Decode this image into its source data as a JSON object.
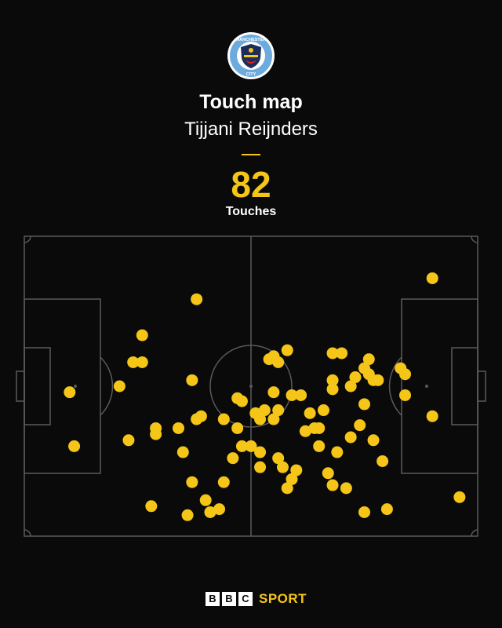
{
  "header": {
    "crest_text_top": "MANCHESTER",
    "crest_text_bottom": "CITY",
    "title": "Touch map",
    "player": "Tijjani Reijnders",
    "touch_count": "82",
    "touch_label": "Touches"
  },
  "footer": {
    "bbc_letters": [
      "B",
      "B",
      "C"
    ],
    "sport_label": "SPORT"
  },
  "colors": {
    "background": "#0a0a0a",
    "accent": "#f5c518",
    "pitch_lines": "#5a5a5a",
    "crest_blue": "#6cabdd"
  },
  "chart_data": {
    "type": "scatter",
    "x_range": [
      0,
      100
    ],
    "y_range": [
      0,
      100
    ],
    "touches": [
      [
        38,
        21
      ],
      [
        90,
        14
      ],
      [
        26,
        33
      ],
      [
        26,
        42
      ],
      [
        24,
        42
      ],
      [
        21,
        50
      ],
      [
        10,
        52
      ],
      [
        37,
        48
      ],
      [
        39,
        60
      ],
      [
        38,
        61
      ],
      [
        35,
        72
      ],
      [
        37,
        82
      ],
      [
        40,
        88
      ],
      [
        29,
        64
      ],
      [
        29,
        66
      ],
      [
        23,
        68
      ],
      [
        28,
        90
      ],
      [
        11,
        70
      ],
      [
        47,
        54
      ],
      [
        48,
        55
      ],
      [
        44,
        61
      ],
      [
        47,
        64
      ],
      [
        54,
        41
      ],
      [
        55,
        40
      ],
      [
        56,
        42
      ],
      [
        58,
        38
      ],
      [
        55,
        52
      ],
      [
        51,
        59
      ],
      [
        53,
        58
      ],
      [
        52,
        61
      ],
      [
        55,
        61
      ],
      [
        56,
        58
      ],
      [
        59,
        53
      ],
      [
        48,
        70
      ],
      [
        46,
        74
      ],
      [
        52,
        72
      ],
      [
        56,
        74
      ],
      [
        52,
        77
      ],
      [
        57,
        77
      ],
      [
        59,
        81
      ],
      [
        58,
        84
      ],
      [
        60,
        78
      ],
      [
        44,
        82
      ],
      [
        43,
        91
      ],
      [
        41,
        92
      ],
      [
        36,
        93
      ],
      [
        50,
        70
      ],
      [
        65,
        64
      ],
      [
        61,
        53
      ],
      [
        62,
        65
      ],
      [
        63,
        59
      ],
      [
        64,
        64
      ],
      [
        66,
        58
      ],
      [
        65,
        70
      ],
      [
        68,
        39
      ],
      [
        70,
        39
      ],
      [
        68,
        48
      ],
      [
        68,
        51
      ],
      [
        73,
        47
      ],
      [
        72,
        50
      ],
      [
        76,
        46
      ],
      [
        77,
        48
      ],
      [
        75,
        44
      ],
      [
        78,
        48
      ],
      [
        76,
        41
      ],
      [
        83,
        44
      ],
      [
        84,
        46
      ],
      [
        84,
        53
      ],
      [
        75,
        56
      ],
      [
        74,
        63
      ],
      [
        72,
        67
      ],
      [
        69,
        72
      ],
      [
        67,
        79
      ],
      [
        68,
        83
      ],
      [
        71,
        84
      ],
      [
        77,
        68
      ],
      [
        79,
        75
      ],
      [
        80,
        91
      ],
      [
        75,
        92
      ],
      [
        90,
        60
      ],
      [
        96,
        87
      ],
      [
        34,
        64
      ]
    ]
  }
}
